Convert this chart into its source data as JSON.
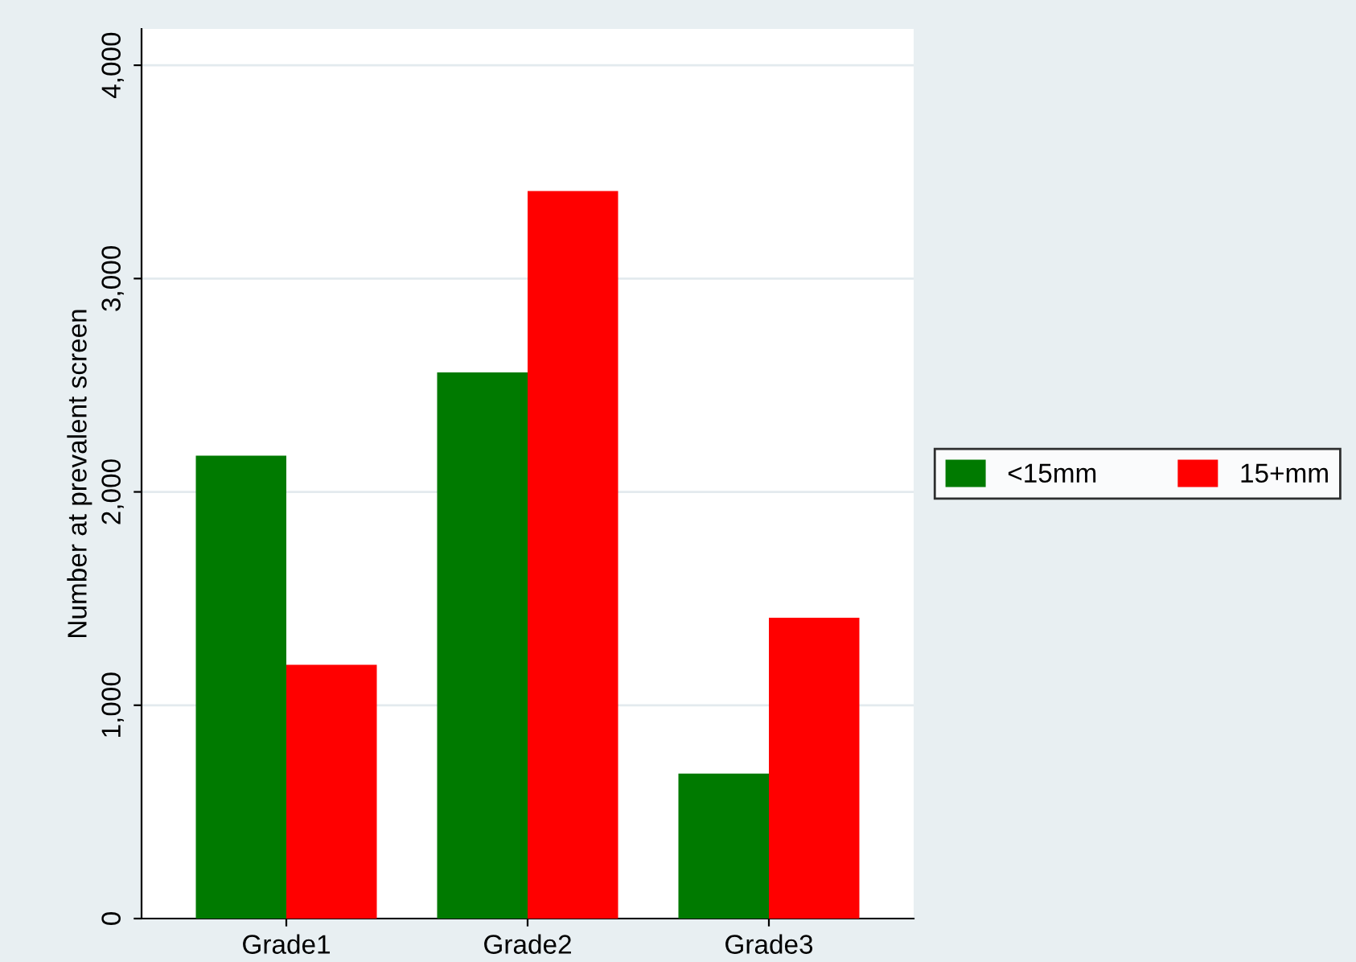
{
  "chart_data": {
    "type": "bar",
    "ylabel": "Number at prevalent screen",
    "categories": [
      "Grade1",
      "Grade2",
      "Grade3"
    ],
    "series": [
      {
        "name": "<15mm",
        "color": "#007a00",
        "values": [
          2170,
          2560,
          680
        ]
      },
      {
        "name": "15+mm",
        "color": "#ff0000",
        "values": [
          1190,
          3410,
          1410
        ]
      }
    ],
    "ylim": [
      0,
      4170
    ],
    "yticks": [
      {
        "value": 0,
        "label": "0"
      },
      {
        "value": 1000,
        "label": "1,000"
      },
      {
        "value": 2000,
        "label": "2,000"
      },
      {
        "value": 3000,
        "label": "3,000"
      },
      {
        "value": 4000,
        "label": "4,000"
      }
    ],
    "grid": "y",
    "legend": "right"
  }
}
